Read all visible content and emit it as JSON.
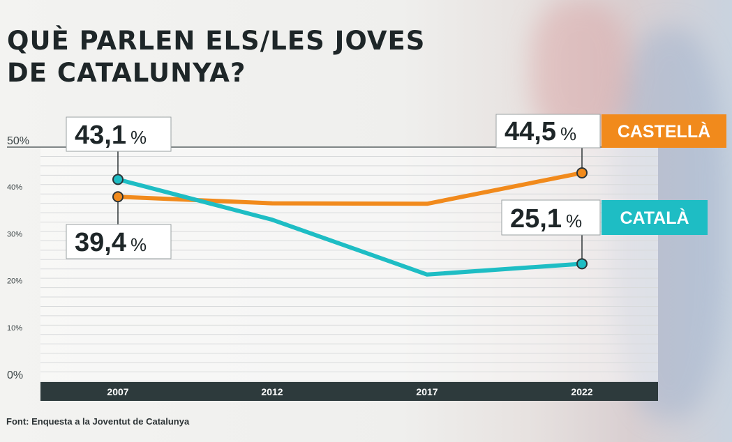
{
  "title": {
    "line1": "QUÈ PARLEN ELS/LES JOVES",
    "line2": "DE CATALUNYA?"
  },
  "source": "Font: Enquesta a la Joventut de Catalunya",
  "colors": {
    "castella": "#f18a1c",
    "catala": "#1ebdc4",
    "axis_band": "#2d3a3c",
    "title": "#1e2628"
  },
  "chart_data": {
    "type": "line",
    "x": [
      "2007",
      "2012",
      "2017",
      "2022"
    ],
    "ylim": [
      0,
      50
    ],
    "yticks": [
      {
        "value": 0,
        "label": "0%"
      },
      {
        "value": 10,
        "label": "10%"
      },
      {
        "value": 20,
        "label": "20%"
      },
      {
        "value": 30,
        "label": "30%"
      },
      {
        "value": 40,
        "label": "40%"
      },
      {
        "value": 50,
        "label": "50%"
      }
    ],
    "grid": true,
    "series": [
      {
        "name": "CASTELLÀ",
        "color": "#f18a1c",
        "values": [
          39.4,
          38.0,
          37.9,
          44.5
        ],
        "callouts": [
          {
            "index": 0,
            "number": "39,4",
            "unit": "%"
          },
          {
            "index": 3,
            "number": "44,5",
            "unit": "%"
          }
        ]
      },
      {
        "name": "CATALÀ",
        "color": "#1ebdc4",
        "values": [
          43.1,
          34.5,
          22.8,
          25.1
        ],
        "callouts": [
          {
            "index": 0,
            "number": "43,1",
            "unit": "%"
          },
          {
            "index": 3,
            "number": "25,1",
            "unit": "%"
          }
        ]
      }
    ]
  }
}
